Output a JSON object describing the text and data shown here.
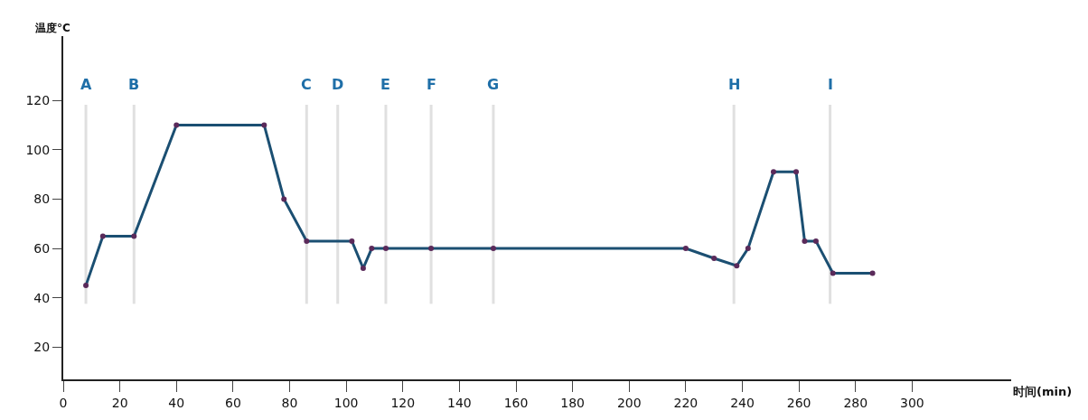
{
  "chart_data": {
    "type": "line",
    "xlabel": "时间(min)",
    "ylabel": "温度°C",
    "x": [
      8,
      14,
      25,
      40,
      71,
      78,
      86,
      102,
      106,
      109,
      114,
      130,
      152,
      220,
      230,
      238,
      242,
      251,
      259,
      262,
      266,
      272,
      286
    ],
    "series": [
      {
        "color": "#1b4f72",
        "values": [
          45,
          65,
          65,
          110,
          110,
          80,
          63,
          63,
          52,
          60,
          60,
          60,
          60,
          60,
          56,
          53,
          60,
          91,
          91,
          63,
          63,
          50,
          50
        ]
      }
    ],
    "marker": "circle",
    "line_style": "solid",
    "grid": false,
    "xlim": [
      0,
      335
    ],
    "xticks": [
      0,
      20,
      40,
      60,
      80,
      100,
      120,
      140,
      160,
      180,
      200,
      220,
      240,
      260,
      280,
      300
    ],
    "ylim": [
      7,
      146
    ],
    "yticks": [
      20,
      40,
      60,
      80,
      100,
      120
    ],
    "ref_lines": [
      {
        "axis": "x",
        "value": 8,
        "label": "A",
        "color": "#e0e0e0"
      },
      {
        "axis": "x",
        "value": 25,
        "label": "B",
        "color": "#e0e0e0"
      },
      {
        "axis": "x",
        "value": 86,
        "label": "C",
        "color": "#e0e0e0"
      },
      {
        "axis": "x",
        "value": 97,
        "label": "D",
        "color": "#e0e0e0"
      },
      {
        "axis": "x",
        "value": 114,
        "label": "E",
        "color": "#e0e0e0"
      },
      {
        "axis": "x",
        "value": 130,
        "label": "F",
        "color": "#e0e0e0"
      },
      {
        "axis": "x",
        "value": 152,
        "label": "G",
        "color": "#e0e0e0"
      },
      {
        "axis": "x",
        "value": 237,
        "label": "H",
        "color": "#e0e0e0"
      },
      {
        "axis": "x",
        "value": 271,
        "label": "I",
        "color": "#e0e0e0"
      }
    ]
  }
}
